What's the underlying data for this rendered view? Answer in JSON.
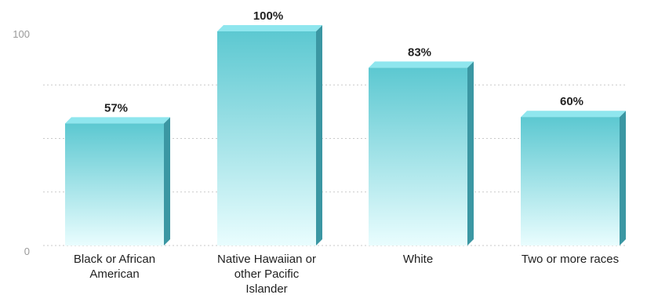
{
  "chart_data": {
    "type": "bar",
    "categories": [
      [
        "Black or African",
        "American"
      ],
      [
        "Native Hawaiian or",
        "other Pacific",
        "Islander"
      ],
      [
        "White"
      ],
      [
        "Two or more races"
      ]
    ],
    "values": [
      57,
      100,
      83,
      60
    ],
    "value_labels": [
      "57%",
      "100%",
      "83%",
      "60%"
    ],
    "y_ticks": [
      {
        "value": 0,
        "label": "0"
      },
      {
        "value": 100,
        "label": "100"
      }
    ],
    "ylim": [
      0,
      100
    ],
    "grid": "dotted",
    "bar_style": "3d",
    "colors": {
      "bar_top": "#5cc8d1",
      "bar_bottom": "#e9fdfe",
      "bar_side": "#3b97a3",
      "bar_cap": "#8fe6ee",
      "grid": "#c9c9c9"
    }
  }
}
